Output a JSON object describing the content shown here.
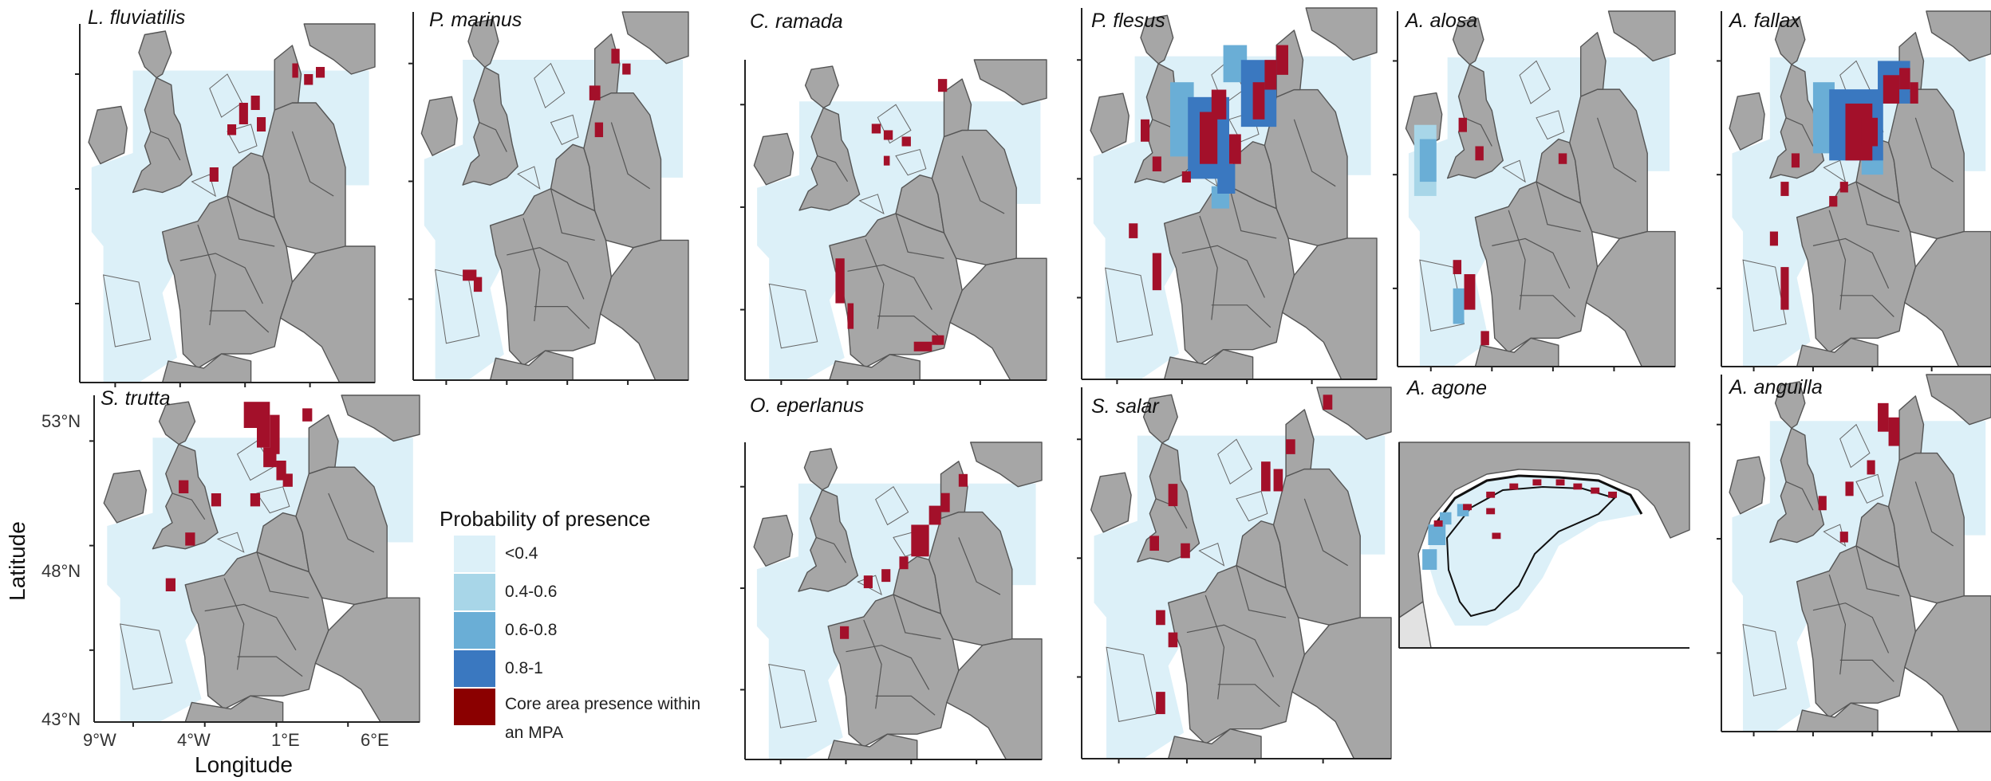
{
  "panels": [
    {
      "id": "lflu",
      "title": "L. fluviatilis"
    },
    {
      "id": "pmar",
      "title": "P. marinus"
    },
    {
      "id": "cram",
      "title": "C. ramada"
    },
    {
      "id": "pfle",
      "title": "P. flesus"
    },
    {
      "id": "aalo",
      "title": "A. alosa"
    },
    {
      "id": "afal",
      "title": "A. fallax"
    },
    {
      "id": "stru",
      "title": "S. trutta"
    },
    {
      "id": "oepe",
      "title": "O. eperlanus"
    },
    {
      "id": "ssal",
      "title": "S. salar"
    },
    {
      "id": "aago",
      "title": "A. agone"
    },
    {
      "id": "aang",
      "title": "A. anguilla"
    }
  ],
  "axes": {
    "x_title": "Longitude",
    "y_title": "Latitude",
    "x_ticks": [
      "9°W",
      "4°W",
      "1°E",
      "6°E"
    ],
    "y_ticks": [
      "53°N",
      "48°N",
      "43°N"
    ]
  },
  "legend": {
    "title": "Probability of presence",
    "items": [
      {
        "label": "<0.4",
        "color": "#dcf0f8"
      },
      {
        "label": "0.4-0.6",
        "color": "#a8d6e8"
      },
      {
        "label": "0.6-0.8",
        "color": "#6aaed6"
      },
      {
        "label": "0.8-1",
        "color": "#3a78c0"
      },
      {
        "label": "Core area presence within an MPA",
        "color": "#8b0000"
      }
    ]
  },
  "colors": {
    "foreign_land": "#a6a6a6",
    "home_land": "#e2e2e2",
    "sea_prob": "#dcf0f8",
    "core": "#a3102a",
    "border": "#555555"
  }
}
